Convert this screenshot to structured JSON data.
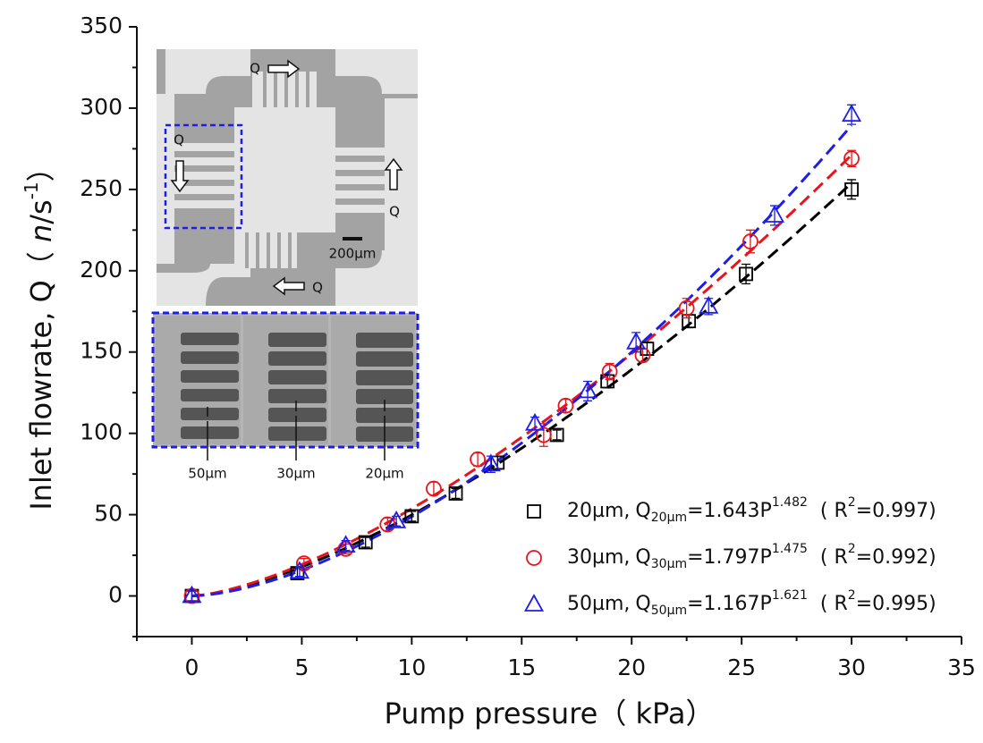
{
  "chart_data": {
    "type": "scatter",
    "x_label": "Pump pressure（ kPa）",
    "y_label": {
      "main": "Inlet flowrate, Q（ ",
      "n": "n",
      "unit": "/s",
      "sup": "-1",
      "close": "）"
    },
    "xlim": [
      -2.5,
      35
    ],
    "ylim": [
      -25,
      350
    ],
    "xticks": [
      0,
      5,
      10,
      15,
      20,
      25,
      30,
      35
    ],
    "yticks": [
      0,
      50,
      100,
      150,
      200,
      250,
      300,
      350
    ],
    "xminorticks": [
      -2.5,
      2.5,
      7.5,
      12.5,
      17.5,
      22.5,
      27.5,
      32.5
    ],
    "yminorticks": [
      -25,
      25,
      75,
      125,
      175,
      225,
      275,
      325
    ],
    "fit_text": {
      "sep": ",",
      "q": "Q",
      "eq": "=",
      "p": "P",
      "r_open": "( R",
      "r_sup": "2",
      "r_close": ")"
    },
    "series": [
      {
        "name": "20µm",
        "color": "#000000",
        "marker": "square",
        "x": [
          0,
          4.8,
          7.9,
          10,
          12,
          13.9,
          16.6,
          18.9,
          20.7,
          22.6,
          25.2,
          30
        ],
        "values": [
          0,
          14,
          33,
          49,
          63,
          82,
          99,
          132,
          152,
          169,
          198,
          250
        ],
        "errors": [
          3,
          3,
          3,
          3,
          3,
          4,
          3,
          4,
          4,
          4,
          6,
          6
        ],
        "fit": {
          "a": 1.643,
          "b": 1.482,
          "r2": 0.997
        }
      },
      {
        "name": "30µm",
        "color": "#e8141c",
        "marker": "circle",
        "x": [
          0,
          5.1,
          7,
          8.9,
          11,
          13,
          16,
          17,
          19,
          20.5,
          22.5,
          25.4,
          30
        ],
        "values": [
          0,
          20,
          29,
          44,
          66,
          84,
          99,
          117,
          138,
          148,
          177,
          218,
          269
        ],
        "errors": [
          3,
          3,
          3,
          4,
          4,
          4,
          7,
          4,
          5,
          4,
          6,
          7,
          5
        ],
        "fit": {
          "a": 1.797,
          "b": 1.475,
          "r2": 0.992
        }
      },
      {
        "name": "50µm",
        "color": "#1e1ee6",
        "marker": "triangle",
        "x": [
          0,
          4.9,
          7,
          9.3,
          13.6,
          15.6,
          18,
          20.2,
          23.5,
          26.5,
          30
        ],
        "values": [
          0,
          15,
          31,
          46,
          81,
          106,
          126,
          156,
          178,
          234,
          296
        ],
        "errors": [
          3,
          3,
          3,
          3,
          5,
          4,
          6,
          6,
          5,
          6,
          6
        ],
        "fit": {
          "a": 1.167,
          "b": 1.621,
          "r2": 0.995
        }
      }
    ],
    "inset": {
      "arrow_labels": [
        "Q",
        "Q",
        "Q",
        "Q"
      ],
      "scale_bar": "200µm",
      "widths": [
        "50µm",
        "30µm",
        "20µm"
      ]
    }
  }
}
